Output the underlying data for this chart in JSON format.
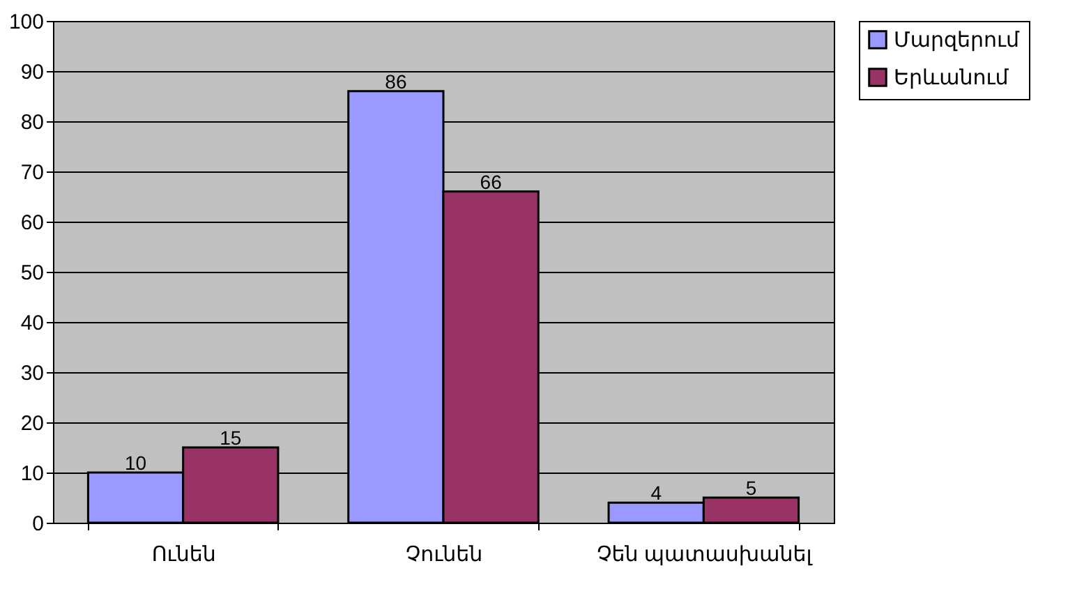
{
  "chart_data": {
    "type": "bar",
    "categories": [
      "Ունեն",
      "Չունեն",
      "Չեն պատասխանել"
    ],
    "series": [
      {
        "name": "Մարզերում",
        "color": "#9999ff",
        "values": [
          10,
          86,
          4
        ]
      },
      {
        "name": "Երևանում",
        "color": "#993366",
        "values": [
          15,
          66,
          5
        ]
      }
    ],
    "ylim": [
      0,
      100
    ],
    "yticks": [
      0,
      10,
      20,
      30,
      40,
      50,
      60,
      70,
      80,
      90,
      100
    ],
    "grid": "y",
    "legend": "right",
    "data_labels": true
  }
}
